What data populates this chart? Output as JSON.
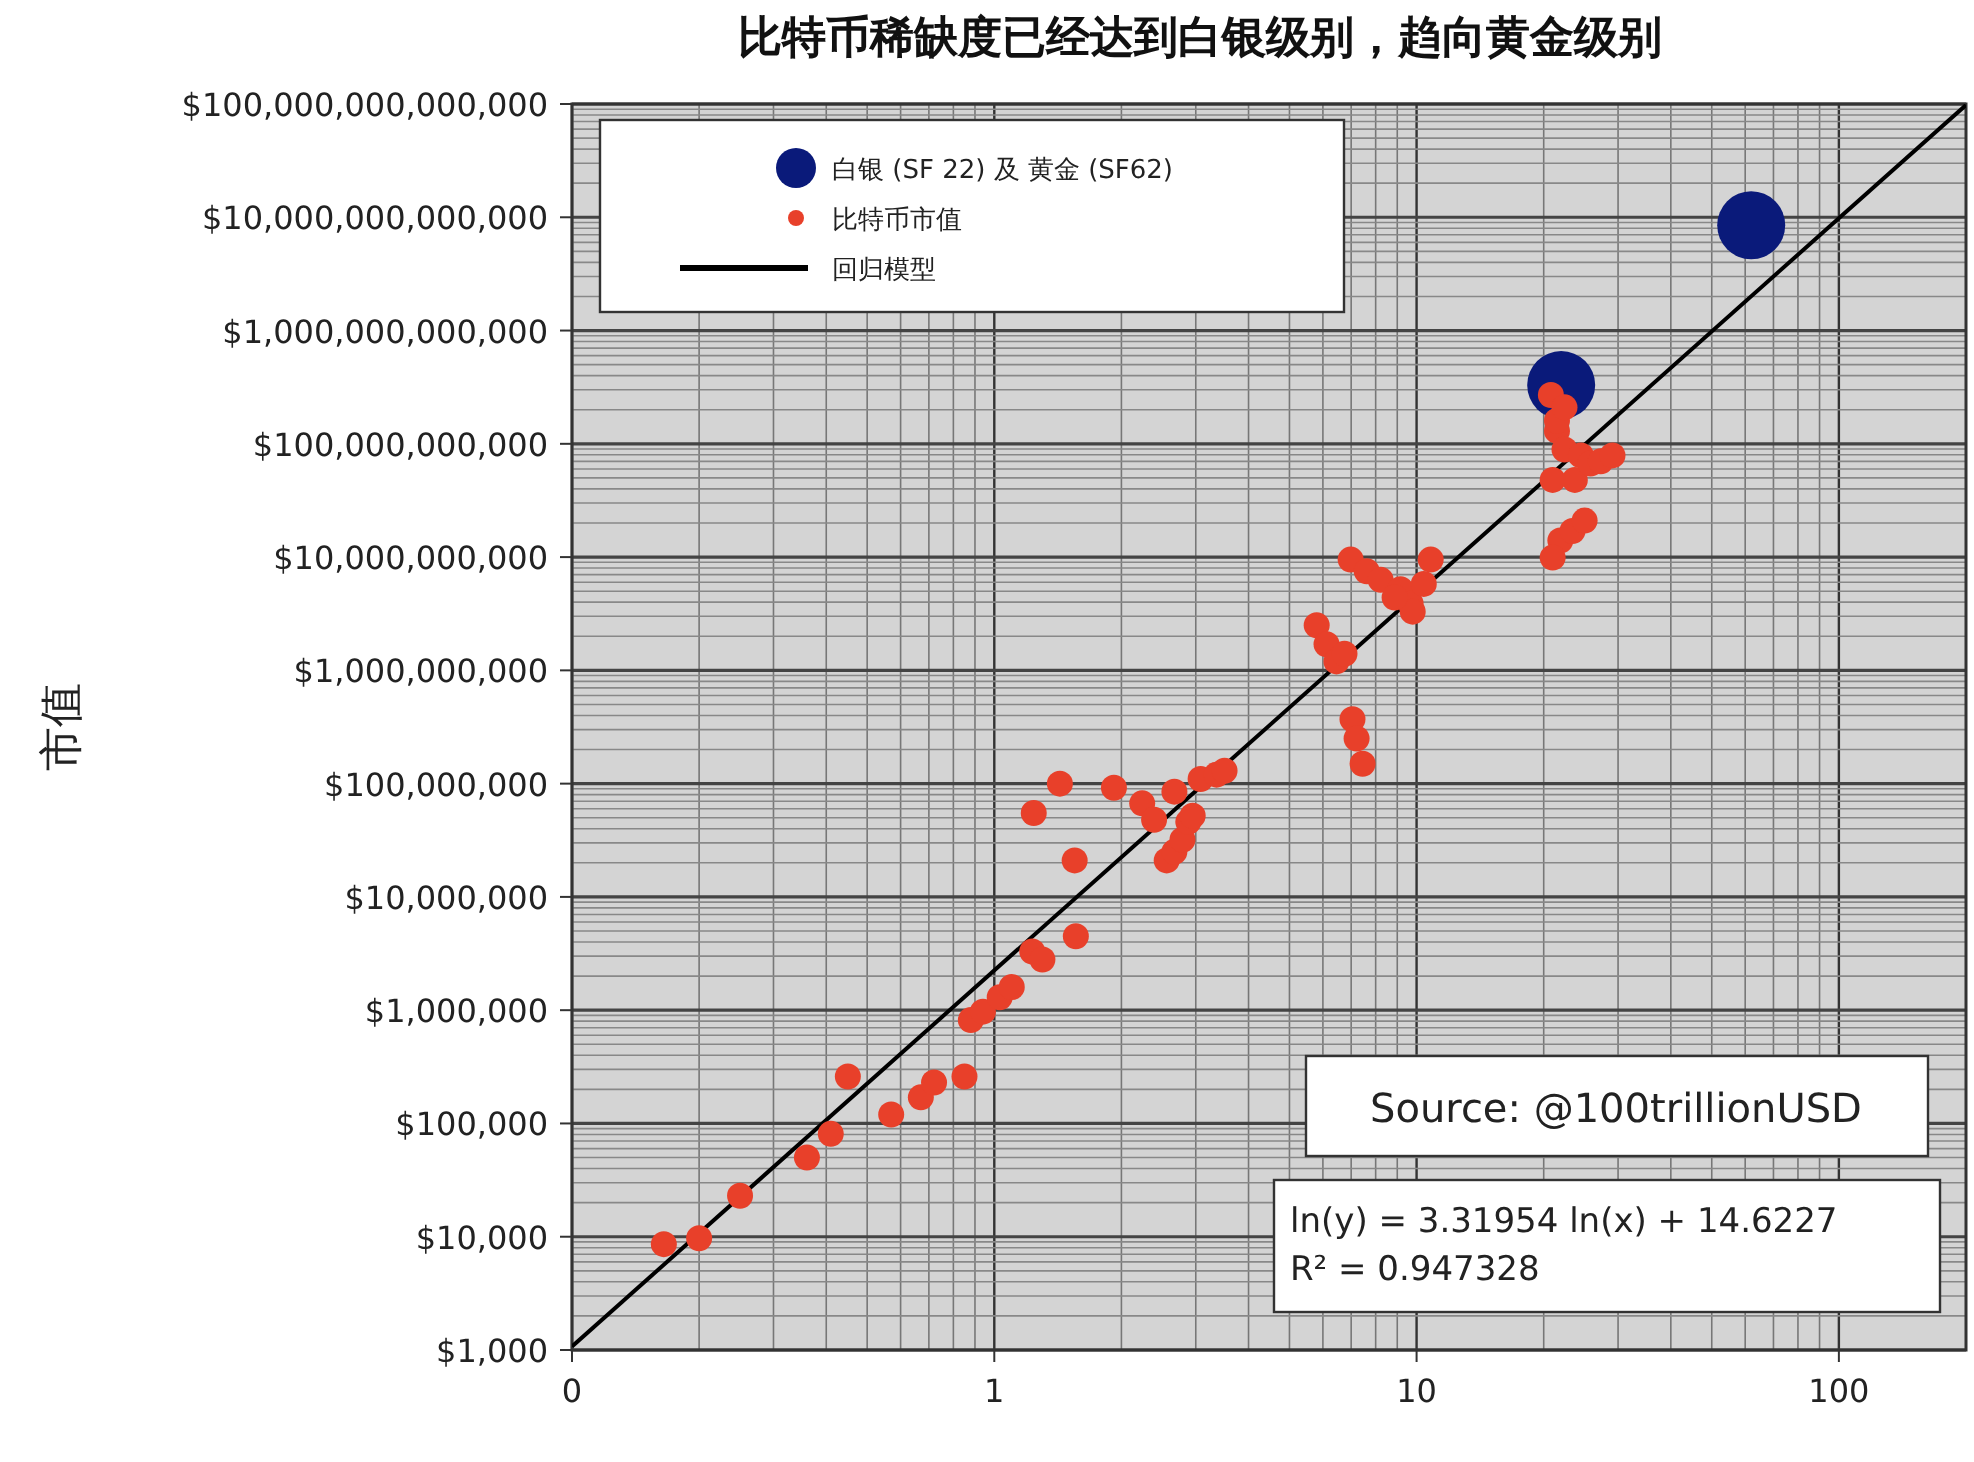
{
  "chart_data": {
    "type": "scatter",
    "title": "比特币稀缺度已经达到白银级别，趋向黄金级别",
    "ylabel": "市值",
    "log": "xy",
    "grid": true,
    "legend": "top left",
    "xlim": [
      0.1,
      200
    ],
    "ylim": [
      1000,
      100000000000000
    ],
    "xticks": [
      {
        "value": 0.1,
        "label": "0"
      },
      1,
      10,
      100
    ],
    "yticks": [
      {
        "value": 1000,
        "label": "$1,000"
      },
      {
        "value": 10000,
        "label": "$10,000"
      },
      {
        "value": 100000,
        "label": "$100,000"
      },
      {
        "value": 1000000,
        "label": "$1,000,000"
      },
      {
        "value": 10000000,
        "label": "$10,000,000"
      },
      {
        "value": 100000000,
        "label": "$100,000,000"
      },
      {
        "value": 1000000000,
        "label": "$1,000,000,000"
      },
      {
        "value": 10000000000,
        "label": "$10,000,000,000"
      },
      {
        "value": 100000000000,
        "label": "$100,000,000,000"
      },
      {
        "value": 1000000000000,
        "label": "$1,000,000,000,000"
      },
      {
        "value": 10000000000000,
        "label": "$10,000,000,000,000"
      },
      {
        "value": 100000000000000,
        "label": "$100,000,000,000,000"
      }
    ],
    "series": [
      {
        "name": "白银 (SF 22) 及 黄金 (SF62)",
        "type": "bubble",
        "marker": "circle",
        "color": "#0a1a7a",
        "x": [
          22,
          62
        ],
        "values": [
          330000000000,
          8500000000000
        ],
        "sizes": [
          1,
          1
        ]
      },
      {
        "name": "比特币市值",
        "type": "scatter",
        "marker": "circle",
        "color": "#e8402a",
        "x": [
          0.165,
          0.2,
          0.25,
          0.36,
          0.41,
          0.45,
          0.57,
          0.67,
          0.72,
          0.85,
          0.88,
          0.94,
          1.03,
          1.1,
          1.23,
          1.3,
          1.56,
          1.24,
          1.43,
          1.55,
          1.92,
          2.24,
          2.39,
          2.56,
          2.67,
          2.79,
          2.88,
          3.08,
          3.36,
          3.51,
          2.67,
          2.95,
          5.8,
          6.12,
          6.46,
          6.75,
          7.05,
          7.21,
          7.45,
          6.98,
          7.62,
          8.22,
          9.16,
          9.68,
          10.4,
          10.8,
          9.79,
          8.87,
          20.8,
          21.5,
          22.4,
          23.7,
          24.5,
          25.8,
          27.3,
          21.9,
          21.0,
          23.4,
          25.0,
          21.0,
          21.5,
          22.4,
          29.1
        ],
        "values": [
          8600,
          9700,
          23000,
          50000,
          81000,
          260000,
          120000,
          170000,
          230000,
          260000,
          820000,
          970000,
          1300000,
          1600000,
          3300000,
          2800000,
          4500000,
          55000000,
          100000000,
          21000000,
          92000000,
          67000000,
          48000000,
          21000000,
          25000000,
          32000000,
          46000000,
          110000000,
          120000000,
          130000000,
          85000000,
          52000000,
          2500000000,
          1700000000,
          1200000000,
          1400000000,
          370000000,
          250000000,
          150000000,
          9500000000,
          7500000000,
          6300000000,
          5200000000,
          3900000000,
          5800000000,
          9500000000,
          3300000000,
          4400000000,
          270000000000,
          130000000000,
          89000000000,
          48000000000,
          79000000000,
          67000000000,
          70000000000,
          14000000000,
          9900000000,
          17000000000,
          21000000000,
          48000000000,
          160000000000,
          210000000000,
          79000000000
        ]
      },
      {
        "name": "回归模型",
        "type": "line",
        "color": "#000000",
        "x": [
          0.1,
          200
        ],
        "values": [
          1074,
          98000000000000
        ]
      }
    ],
    "annotations": [
      "Source: @100trillionUSD",
      "ln(y) = 3.31954 ln(x) + 14.6227",
      "R² = 0.947328"
    ]
  }
}
